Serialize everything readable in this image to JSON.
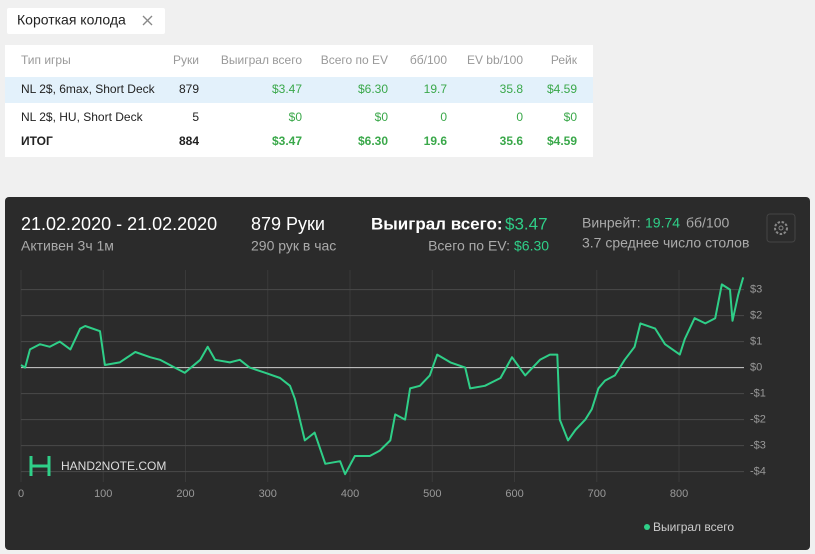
{
  "tab": {
    "label": "Короткая колода"
  },
  "table": {
    "columns": [
      "Тип игры",
      "Руки",
      "Выиграл всего",
      "Всего по EV",
      "бб/100",
      "EV bb/100",
      "Рейк"
    ],
    "rows": [
      [
        "NL 2$, 6max, Short Deck",
        "879",
        "$3.47",
        "$6.30",
        "19.7",
        "35.8",
        "$4.59"
      ],
      [
        "NL 2$, HU, Short Deck",
        "5",
        "$0",
        "$0",
        "0",
        "0",
        "$0"
      ]
    ],
    "total": [
      "ИТОГ",
      "884",
      "$3.47",
      "$6.30",
      "19.6",
      "35.6",
      "$4.59"
    ]
  },
  "summary": {
    "date_range": "21.02.2020 - 21.02.2020",
    "active": "Активен 3ч 1м",
    "hands": "879 Руки",
    "rate": "290 рук в час",
    "won_label": "Выиграл всего:",
    "won_value": "$3.47",
    "ev_label": "Всего по EV:",
    "ev_value": "$6.30",
    "winrate_label": "Винрейт:",
    "winrate_value": "19.74",
    "winrate_unit": "бб/100",
    "tables": "3.7 среднее число столов"
  },
  "watermark": "HAND2NOTE.COM",
  "chart_data": {
    "type": "line",
    "x": [
      0,
      5,
      11,
      23,
      35,
      47,
      60,
      72,
      78,
      96,
      102,
      120,
      139,
      157,
      169,
      187,
      199,
      218,
      227,
      236,
      254,
      266,
      278,
      297,
      315,
      327,
      333,
      345,
      357,
      370,
      388,
      394,
      406,
      424,
      436,
      449,
      455,
      467,
      473,
      485,
      497,
      506,
      522,
      540,
      546,
      564,
      583,
      597,
      613,
      631,
      643,
      652,
      655,
      665,
      674,
      686,
      694,
      702,
      710,
      722,
      734,
      746,
      753,
      771,
      783,
      801,
      807,
      819,
      832,
      844,
      852,
      862,
      865,
      872,
      878
    ],
    "series": [
      {
        "name": "Выиграл всего",
        "color": "#2fcf88",
        "values": [
          0.1,
          0,
          0.7,
          0.9,
          0.8,
          1.0,
          0.7,
          1.5,
          1.6,
          1.4,
          0.1,
          0.2,
          0.6,
          0.4,
          0.3,
          0,
          -0.2,
          0.3,
          0.8,
          0.3,
          0.2,
          0.3,
          0,
          -0.2,
          -0.4,
          -0.7,
          -1.2,
          -2.8,
          -2.5,
          -3.7,
          -3.6,
          -4.1,
          -3.4,
          -3.4,
          -3.2,
          -2.8,
          -1.8,
          -2.0,
          -0.8,
          -0.7,
          -0.3,
          0.5,
          0.2,
          0,
          -0.8,
          -0.7,
          -0.4,
          0.4,
          -0.3,
          0.3,
          0.5,
          0.5,
          -2.0,
          -2.8,
          -2.4,
          -2.0,
          -1.6,
          -0.8,
          -0.5,
          -0.3,
          0.3,
          0.8,
          1.7,
          1.5,
          0.9,
          0.5,
          1.1,
          1.9,
          1.7,
          1.9,
          3.2,
          3.0,
          1.8,
          2.8,
          3.47
        ]
      }
    ],
    "xlim": [
      0,
      879
    ],
    "ylim": [
      -4.4,
      3.6
    ],
    "xticks": [
      0,
      100,
      200,
      300,
      400,
      500,
      600,
      700,
      800
    ],
    "yticks": [
      {
        "value": 3,
        "label": "$3"
      },
      {
        "value": 2,
        "label": "$2"
      },
      {
        "value": 1,
        "label": "$1"
      },
      {
        "value": 0,
        "label": "$0"
      },
      {
        "value": -1,
        "label": "-$1"
      },
      {
        "value": -2,
        "label": "-$2"
      },
      {
        "value": -3,
        "label": "-$3"
      },
      {
        "value": -4,
        "label": "-$4"
      }
    ],
    "grid": true
  }
}
